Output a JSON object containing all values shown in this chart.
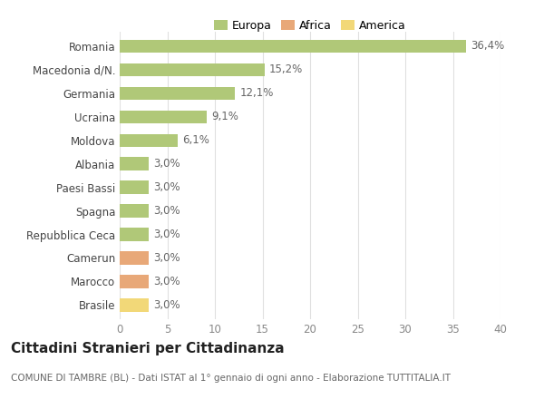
{
  "categories": [
    "Brasile",
    "Marocco",
    "Camerun",
    "Repubblica Ceca",
    "Spagna",
    "Paesi Bassi",
    "Albania",
    "Moldova",
    "Ucraina",
    "Germania",
    "Macedonia d/N.",
    "Romania"
  ],
  "values": [
    3.0,
    3.0,
    3.0,
    3.0,
    3.0,
    3.0,
    3.0,
    6.1,
    9.1,
    12.1,
    15.2,
    36.4
  ],
  "labels": [
    "3,0%",
    "3,0%",
    "3,0%",
    "3,0%",
    "3,0%",
    "3,0%",
    "3,0%",
    "6,1%",
    "9,1%",
    "12,1%",
    "15,2%",
    "36,4%"
  ],
  "colors": [
    "#f2d878",
    "#e8a878",
    "#e8a878",
    "#b0c878",
    "#b0c878",
    "#b0c878",
    "#b0c878",
    "#b0c878",
    "#b0c878",
    "#b0c878",
    "#b0c878",
    "#b0c878"
  ],
  "legend_labels": [
    "Europa",
    "Africa",
    "America"
  ],
  "legend_colors": [
    "#b0c878",
    "#e8a878",
    "#f2d878"
  ],
  "title": "Cittadini Stranieri per Cittadinanza",
  "subtitle": "COMUNE DI TAMBRE (BL) - Dati ISTAT al 1° gennaio di ogni anno - Elaborazione TUTTITALIA.IT",
  "xlim": [
    0,
    40
  ],
  "xticks": [
    0,
    5,
    10,
    15,
    20,
    25,
    30,
    35,
    40
  ],
  "bg_color": "#ffffff",
  "grid_color": "#e0e0e0",
  "bar_height": 0.55,
  "label_fontsize": 8.5,
  "tick_fontsize": 8.5,
  "title_fontsize": 11,
  "subtitle_fontsize": 7.5
}
